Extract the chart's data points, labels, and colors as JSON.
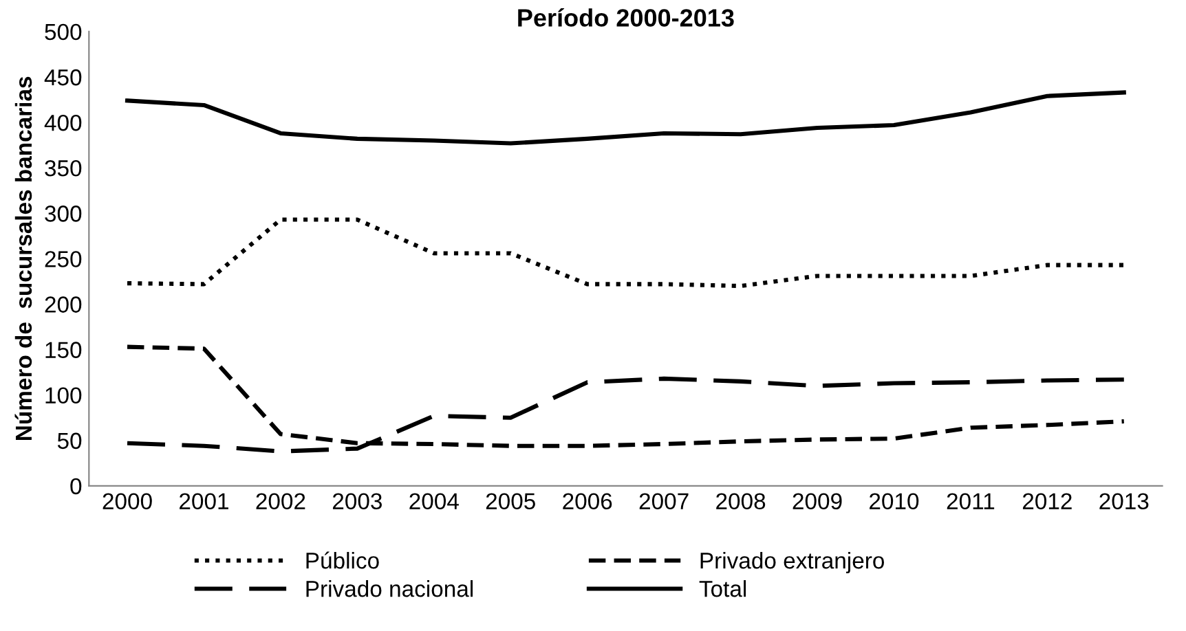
{
  "chart_data": {
    "type": "line",
    "title": "Período 2000-2013",
    "ylabel": "Número de  sucursales bancarias",
    "categories": [
      "2000",
      "2001",
      "2002",
      "2003",
      "2004",
      "2005",
      "2006",
      "2007",
      "2008",
      "2009",
      "2010",
      "2011",
      "2012",
      "2013"
    ],
    "ylim": [
      0,
      500
    ],
    "yticks": [
      0,
      50,
      100,
      150,
      200,
      250,
      300,
      350,
      400,
      450,
      500
    ],
    "grid": false,
    "legend": "bottom",
    "marker": "none",
    "series": [
      {
        "name": "Público",
        "color": "#000000",
        "line_style": "dotted",
        "values": [
          223,
          222,
          293,
          293,
          256,
          256,
          222,
          222,
          220,
          231,
          231,
          231,
          243,
          243
        ]
      },
      {
        "name": "Privado nacional",
        "color": "#000000",
        "line_style": "longdash",
        "values": [
          47,
          44,
          38,
          41,
          77,
          75,
          114,
          118,
          115,
          110,
          113,
          114,
          116,
          117
        ]
      },
      {
        "name": "Privado extranjero",
        "color": "#000000",
        "line_style": "dashed",
        "values": [
          153,
          151,
          57,
          47,
          46,
          44,
          44,
          46,
          49,
          51,
          52,
          64,
          67,
          71
        ]
      },
      {
        "name": "Total",
        "color": "#000000",
        "line_style": "solid",
        "values": [
          424,
          419,
          388,
          382,
          380,
          377,
          382,
          388,
          387,
          394,
          397,
          411,
          429,
          433
        ]
      }
    ]
  }
}
